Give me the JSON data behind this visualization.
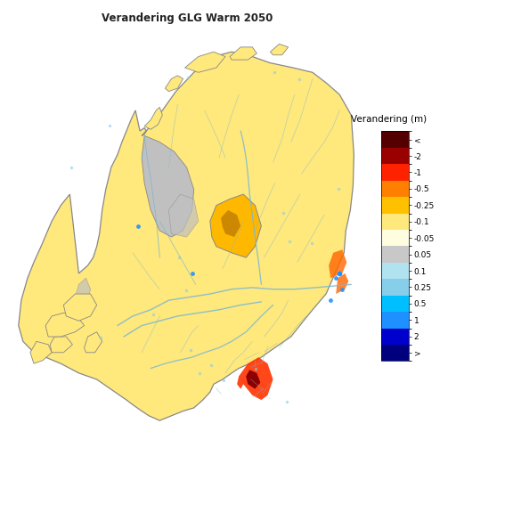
{
  "title": "Verandering GLG Warm 2050",
  "colorbar_label": "Verandering (m)",
  "colorbar_title_fontsize": 7.5,
  "title_fontsize": 8.5,
  "tick_labels": [
    ">",
    "2",
    "1",
    "0.5",
    "0.25",
    "0.1",
    "0.05",
    "-0.05",
    "-0.1",
    "-0.25",
    "-0.5",
    "-1",
    "-2",
    "<"
  ],
  "colors": [
    "#00007F",
    "#0000CD",
    "#1E90FF",
    "#00BFFF",
    "#87CEEB",
    "#B0E2F0",
    "#C8C8C8",
    "#FFFDE0",
    "#FFE87C",
    "#FFC000",
    "#FF8000",
    "#FF2200",
    "#9B0000",
    "#550000"
  ],
  "background_color": "#FFFFFF",
  "map_bg": "#FFFFFF",
  "outline_color": "#888888",
  "river_color": "#7AB8D4",
  "river_lw": 0.6,
  "canal_lw": 0.4,
  "border_lw": 0.9,
  "dominant_land_color": "#FFE87C",
  "veluwe_color": "#FFC000",
  "veluwe_center_color": "#CC7700",
  "south_red_color": "#FF4400",
  "south_dark_color": "#AA0000",
  "gray_water_color": "#C0C0C0",
  "light_blue_color": "#ADD8E6"
}
